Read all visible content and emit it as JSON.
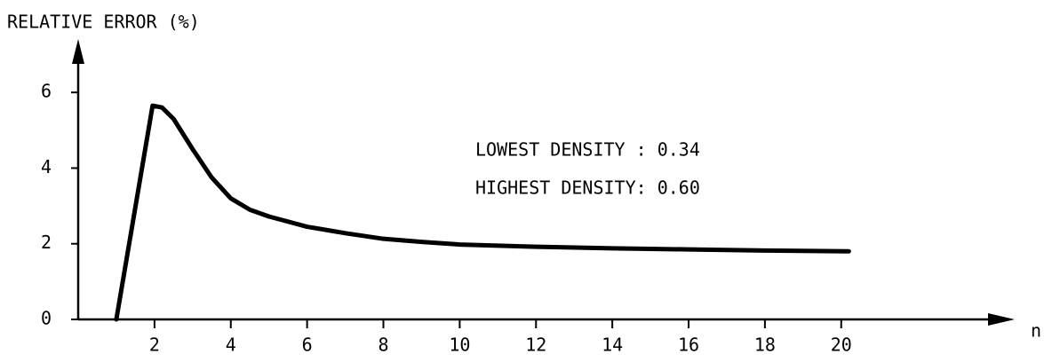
{
  "chart_data": {
    "type": "line",
    "y_label": "RELATIVE ERROR (%)",
    "x_label": "n",
    "annotations": [
      "LOWEST DENSITY : 0.34",
      "HIGHEST DENSITY: 0.60"
    ],
    "x": [
      1,
      1.95,
      2.2,
      2.5,
      3,
      3.5,
      4,
      4.5,
      5,
      6,
      7,
      8,
      9,
      10,
      12,
      14,
      16,
      18,
      20.2
    ],
    "values": [
      0,
      5.65,
      5.6,
      5.3,
      4.5,
      3.75,
      3.2,
      2.9,
      2.72,
      2.45,
      2.28,
      2.13,
      2.05,
      1.98,
      1.92,
      1.88,
      1.85,
      1.82,
      1.8
    ],
    "color": "#000000",
    "xlim": [
      0,
      24.5
    ],
    "ylim": [
      0,
      7.2
    ],
    "xticks": [
      2,
      4,
      6,
      8,
      10,
      12,
      14,
      16,
      18,
      20
    ],
    "yticks": [
      0,
      2,
      4,
      6
    ]
  }
}
